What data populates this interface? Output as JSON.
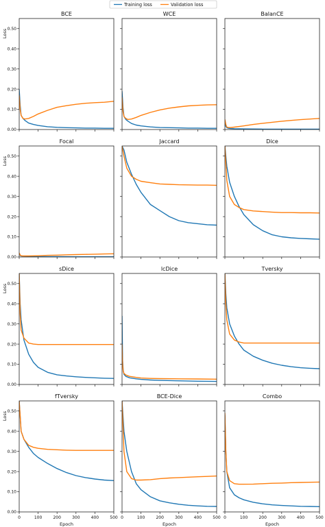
{
  "chart_data": {
    "type": "line",
    "legend": {
      "placement": "top-center",
      "entries": [
        {
          "name": "Training loss",
          "color": "#1f77b4"
        },
        {
          "name": "Validation loss",
          "color": "#ff7f0e"
        }
      ]
    },
    "shared": {
      "xlabel": "Epoch",
      "ylabel": "Loss",
      "xlim": [
        0,
        500
      ],
      "ylim": [
        0,
        0.55
      ],
      "xticks": [
        0,
        100,
        200,
        300,
        400,
        500
      ],
      "xtick_labels": [
        "0",
        "100",
        "200",
        "300",
        "400",
        "500"
      ],
      "yticks": [
        0,
        0.1,
        0.2,
        0.3,
        0.4,
        0.5
      ],
      "ytick_labels": [
        "0.00",
        "0.10",
        "0.20",
        "0.30",
        "0.40",
        "0.50"
      ],
      "grid": false
    },
    "panels": [
      {
        "title": "BCE",
        "series": [
          {
            "name": "Training loss",
            "x": [
              0,
              5,
              10,
              20,
              30,
              50,
              75,
              100,
              150,
              200,
              250,
              300,
              350,
              400,
              450,
              500
            ],
            "y": [
              0.2,
              0.12,
              0.07,
              0.055,
              0.045,
              0.032,
              0.025,
              0.02,
              0.014,
              0.011,
              0.009,
              0.008,
              0.007,
              0.007,
              0.006,
              0.006
            ]
          },
          {
            "name": "Validation loss",
            "x": [
              0,
              5,
              10,
              20,
              30,
              50,
              75,
              100,
              150,
              200,
              250,
              300,
              350,
              400,
              450,
              500
            ],
            "y": [
              0.17,
              0.1,
              0.07,
              0.055,
              0.052,
              0.055,
              0.065,
              0.077,
              0.095,
              0.11,
              0.118,
              0.125,
              0.13,
              0.133,
              0.135,
              0.14
            ]
          }
        ]
      },
      {
        "title": "WCE",
        "series": [
          {
            "name": "Training loss",
            "x": [
              0,
              5,
              10,
              20,
              30,
              50,
              75,
              100,
              150,
              200,
              250,
              300,
              350,
              400,
              450,
              500
            ],
            "y": [
              0.19,
              0.11,
              0.065,
              0.05,
              0.042,
              0.03,
              0.022,
              0.018,
              0.013,
              0.01,
              0.009,
              0.008,
              0.007,
              0.007,
              0.006,
              0.006
            ]
          },
          {
            "name": "Validation loss",
            "x": [
              0,
              5,
              10,
              20,
              30,
              50,
              75,
              100,
              150,
              200,
              250,
              300,
              350,
              400,
              450,
              500
            ],
            "y": [
              0.16,
              0.09,
              0.065,
              0.055,
              0.05,
              0.052,
              0.06,
              0.07,
              0.085,
              0.097,
              0.106,
              0.112,
              0.117,
              0.12,
              0.122,
              0.123
            ]
          }
        ]
      },
      {
        "title": "BalanCE",
        "series": [
          {
            "name": "Training loss",
            "x": [
              0,
              5,
              10,
              20,
              30,
              50,
              100,
              200,
              300,
              400,
              500
            ],
            "y": [
              0.03,
              0.015,
              0.009,
              0.006,
              0.005,
              0.004,
              0.003,
              0.002,
              0.002,
              0.002,
              0.002
            ]
          },
          {
            "name": "Validation loss",
            "x": [
              0,
              5,
              10,
              20,
              30,
              50,
              100,
              150,
              200,
              250,
              300,
              350,
              400,
              450,
              500
            ],
            "y": [
              0.05,
              0.025,
              0.012,
              0.01,
              0.01,
              0.012,
              0.018,
              0.025,
              0.031,
              0.036,
              0.041,
              0.045,
              0.049,
              0.052,
              0.055
            ]
          }
        ]
      },
      {
        "title": "Focal",
        "series": [
          {
            "name": "Training loss",
            "x": [
              0,
              5,
              10,
              20,
              30,
              50,
              100,
              200,
              300,
              400,
              500
            ],
            "y": [
              0.015,
              0.008,
              0.005,
              0.004,
              0.003,
              0.002,
              0.002,
              0.002,
              0.001,
              0.001,
              0.001
            ]
          },
          {
            "name": "Validation loss",
            "x": [
              0,
              5,
              10,
              20,
              30,
              50,
              100,
              150,
              200,
              250,
              300,
              350,
              400,
              450,
              500
            ],
            "y": [
              0.02,
              0.01,
              0.006,
              0.005,
              0.005,
              0.005,
              0.006,
              0.008,
              0.009,
              0.011,
              0.012,
              0.013,
              0.014,
              0.015,
              0.016
            ]
          }
        ]
      },
      {
        "title": "Jaccard",
        "series": [
          {
            "name": "Training loss",
            "x": [
              0,
              10,
              25,
              50,
              75,
              100,
              150,
              200,
              250,
              300,
              350,
              400,
              450,
              500
            ],
            "y": [
              0.55,
              0.53,
              0.47,
              0.41,
              0.36,
              0.32,
              0.26,
              0.23,
              0.2,
              0.18,
              0.17,
              0.165,
              0.16,
              0.158
            ]
          },
          {
            "name": "Validation loss",
            "x": [
              0,
              10,
              25,
              50,
              75,
              100,
              150,
              200,
              250,
              300,
              350,
              400,
              450,
              500
            ],
            "y": [
              0.55,
              0.5,
              0.44,
              0.4,
              0.385,
              0.375,
              0.368,
              0.362,
              0.36,
              0.358,
              0.357,
              0.356,
              0.356,
              0.355
            ]
          }
        ]
      },
      {
        "title": "Dice",
        "series": [
          {
            "name": "Training loss",
            "x": [
              0,
              10,
              25,
              50,
              75,
              100,
              150,
              200,
              250,
              300,
              350,
              400,
              450,
              500
            ],
            "y": [
              0.55,
              0.45,
              0.37,
              0.3,
              0.25,
              0.21,
              0.16,
              0.13,
              0.11,
              0.1,
              0.095,
              0.092,
              0.09,
              0.088
            ]
          },
          {
            "name": "Validation loss",
            "x": [
              0,
              10,
              25,
              50,
              75,
              100,
              150,
              200,
              250,
              300,
              350,
              400,
              450,
              500
            ],
            "y": [
              0.55,
              0.38,
              0.3,
              0.26,
              0.245,
              0.235,
              0.228,
              0.225,
              0.222,
              0.22,
              0.22,
              0.219,
              0.219,
              0.218
            ]
          }
        ]
      },
      {
        "title": "sDice",
        "series": [
          {
            "name": "Training loss",
            "x": [
              0,
              5,
              10,
              25,
              50,
              75,
              100,
              150,
              200,
              250,
              300,
              350,
              400,
              450,
              500
            ],
            "y": [
              0.55,
              0.4,
              0.32,
              0.22,
              0.15,
              0.11,
              0.085,
              0.06,
              0.048,
              0.042,
              0.038,
              0.035,
              0.033,
              0.031,
              0.03
            ]
          },
          {
            "name": "Validation loss",
            "x": [
              0,
              5,
              10,
              25,
              50,
              75,
              100,
              150,
              200,
              250,
              300,
              350,
              400,
              450,
              500
            ],
            "y": [
              0.55,
              0.35,
              0.27,
              0.23,
              0.205,
              0.2,
              0.198,
              0.198,
              0.198,
              0.198,
              0.198,
              0.198,
              0.198,
              0.198,
              0.198
            ]
          }
        ]
      },
      {
        "title": "lcDice",
        "series": [
          {
            "name": "Training loss",
            "x": [
              0,
              3,
              6,
              10,
              20,
              40,
              75,
              100,
              150,
              200,
              300,
              400,
              500
            ],
            "y": [
              0.34,
              0.12,
              0.07,
              0.05,
              0.04,
              0.033,
              0.028,
              0.025,
              0.022,
              0.02,
              0.018,
              0.016,
              0.015
            ]
          },
          {
            "name": "Validation loss",
            "x": [
              0,
              3,
              6,
              10,
              20,
              40,
              75,
              100,
              150,
              200,
              300,
              400,
              500
            ],
            "y": [
              0.2,
              0.1,
              0.065,
              0.055,
              0.047,
              0.04,
              0.035,
              0.032,
              0.03,
              0.029,
              0.028,
              0.027,
              0.026
            ]
          }
        ]
      },
      {
        "title": "Tversky",
        "series": [
          {
            "name": "Training loss",
            "x": [
              0,
              5,
              10,
              25,
              50,
              75,
              100,
              150,
              200,
              250,
              300,
              350,
              400,
              450,
              500
            ],
            "y": [
              0.55,
              0.45,
              0.38,
              0.3,
              0.24,
              0.2,
              0.17,
              0.14,
              0.12,
              0.105,
              0.095,
              0.088,
              0.083,
              0.08,
              0.078
            ]
          },
          {
            "name": "Validation loss",
            "x": [
              0,
              5,
              10,
              25,
              50,
              75,
              100,
              150,
              200,
              250,
              300,
              350,
              400,
              450,
              500
            ],
            "y": [
              0.55,
              0.4,
              0.32,
              0.25,
              0.22,
              0.21,
              0.205,
              0.205,
              0.205,
              0.205,
              0.205,
              0.205,
              0.205,
              0.205,
              0.205
            ]
          }
        ]
      },
      {
        "title": "fTversky",
        "series": [
          {
            "name": "Training loss",
            "x": [
              0,
              10,
              25,
              50,
              75,
              100,
              150,
              200,
              250,
              300,
              350,
              400,
              450,
              500
            ],
            "y": [
              0.55,
              0.4,
              0.36,
              0.32,
              0.29,
              0.27,
              0.24,
              0.215,
              0.195,
              0.18,
              0.17,
              0.163,
              0.158,
              0.155
            ]
          },
          {
            "name": "Validation loss",
            "x": [
              0,
              10,
              25,
              50,
              75,
              100,
              150,
              200,
              250,
              300,
              350,
              400,
              450,
              500
            ],
            "y": [
              0.55,
              0.4,
              0.36,
              0.33,
              0.32,
              0.315,
              0.31,
              0.308,
              0.306,
              0.305,
              0.305,
              0.305,
              0.305,
              0.305
            ]
          }
        ]
      },
      {
        "title": "BCE-Dice",
        "series": [
          {
            "name": "Training loss",
            "x": [
              0,
              10,
              25,
              50,
              75,
              100,
              150,
              200,
              250,
              300,
              350,
              400,
              450,
              500
            ],
            "y": [
              0.55,
              0.4,
              0.3,
              0.2,
              0.14,
              0.11,
              0.075,
              0.055,
              0.045,
              0.038,
              0.033,
              0.03,
              0.028,
              0.027
            ]
          },
          {
            "name": "Validation loss",
            "x": [
              0,
              10,
              25,
              50,
              75,
              100,
              150,
              200,
              250,
              300,
              350,
              400,
              450,
              500
            ],
            "y": [
              0.55,
              0.3,
              0.2,
              0.165,
              0.158,
              0.158,
              0.16,
              0.165,
              0.168,
              0.17,
              0.172,
              0.174,
              0.176,
              0.178
            ]
          }
        ]
      },
      {
        "title": "Combo",
        "series": [
          {
            "name": "Training loss",
            "x": [
              0,
              5,
              10,
              25,
              50,
              75,
              100,
              150,
              200,
              250,
              300,
              350,
              400,
              450,
              500
            ],
            "y": [
              0.48,
              0.3,
              0.2,
              0.12,
              0.085,
              0.07,
              0.06,
              0.048,
              0.04,
              0.035,
              0.032,
              0.03,
              0.028,
              0.027,
              0.026
            ]
          },
          {
            "name": "Validation loss",
            "x": [
              0,
              5,
              10,
              25,
              50,
              75,
              100,
              150,
              200,
              250,
              300,
              350,
              400,
              450,
              500
            ],
            "y": [
              0.49,
              0.3,
              0.2,
              0.155,
              0.14,
              0.137,
              0.137,
              0.138,
              0.14,
              0.142,
              0.143,
              0.145,
              0.146,
              0.147,
              0.148
            ]
          }
        ]
      }
    ]
  }
}
